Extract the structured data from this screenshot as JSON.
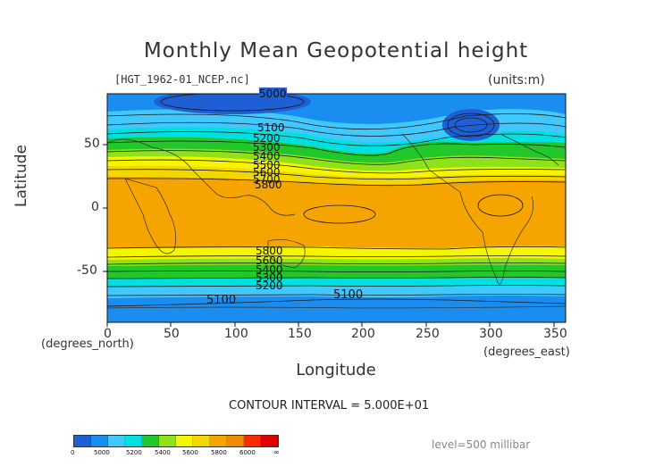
{
  "title": "Monthly Mean Geopotential height",
  "source_label": "[HGT_1962-01_NCEP.nc]",
  "units_label": "(units:m)",
  "ylabel": "Latitude",
  "xlabel": "Longitude",
  "xunits": "(degrees_east)",
  "yunits": "(degrees_north)",
  "contour_interval_label": "CONTOUR INTERVAL = 5.000E+01",
  "level_label": "level=500 millibar",
  "x_ticks": [
    "0",
    "50",
    "100",
    "150",
    "200",
    "250",
    "300",
    "350"
  ],
  "y_ticks": [
    "50",
    "0",
    "-50"
  ],
  "contour_labels": [
    "5000",
    "5100",
    "5200",
    "5300",
    "5400",
    "5500",
    "5600",
    "5700",
    "5800",
    "5800",
    "5600",
    "5400",
    "5300",
    "5200",
    "5100",
    "5100"
  ],
  "colorbar": {
    "labels": [
      "0",
      "5000",
      "5200",
      "5400",
      "5600",
      "5800",
      "6000",
      "∞"
    ],
    "colors": [
      "#1f5fd6",
      "#1a8df0",
      "#40c8ff",
      "#00e0e0",
      "#22c82a",
      "#8ee21a",
      "#f5f500",
      "#f3d800",
      "#f5a400",
      "#f08a00",
      "#ff2a00",
      "#e00000"
    ]
  },
  "map": {
    "x_range": [
      0,
      360
    ],
    "y_range": [
      -90,
      90
    ],
    "projection": "cylindrical equidistant"
  }
}
